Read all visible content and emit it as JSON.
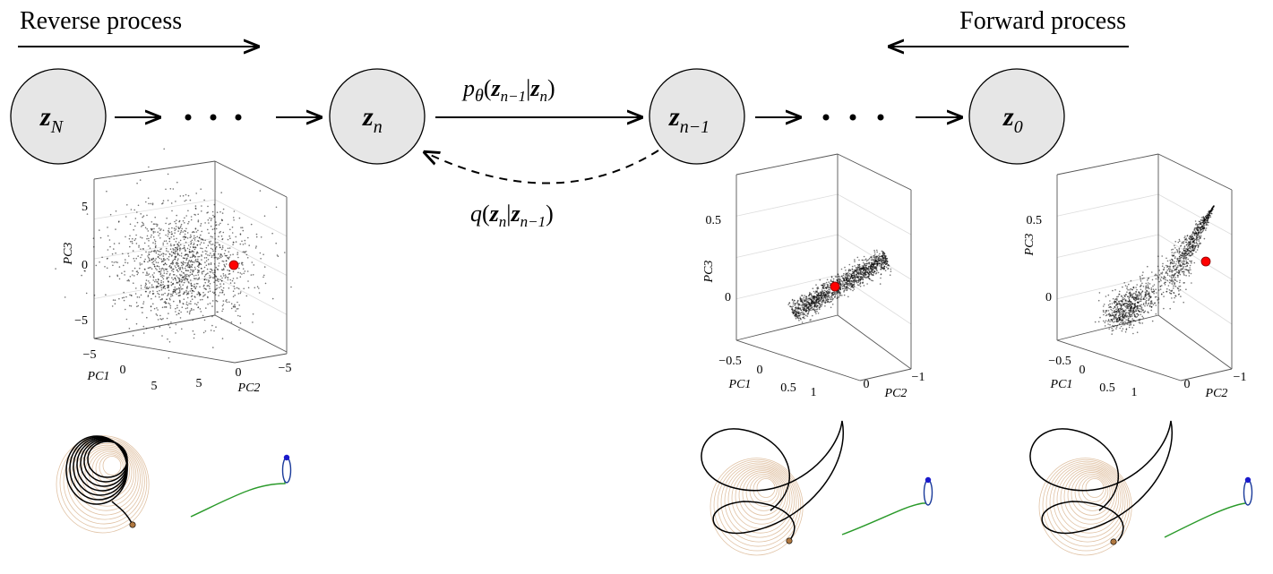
{
  "header": {
    "reverse": "Reverse process",
    "forward": "Forward process"
  },
  "nodes": [
    {
      "symbol": "z",
      "sub": "N"
    },
    {
      "symbol": "z",
      "sub": "n"
    },
    {
      "symbol": "z",
      "sub": "n−1"
    },
    {
      "symbol": "z",
      "sub": "0"
    }
  ],
  "edges": {
    "p_label": [
      "p",
      "θ",
      "(",
      "z",
      "n−1",
      "|",
      "z",
      "n",
      ")"
    ],
    "q_label": [
      "q",
      "(",
      "z",
      "n",
      "|",
      "z",
      "n−1",
      ")"
    ]
  },
  "plots": [
    {
      "pc3_ticks": [
        "5",
        "0",
        "−5"
      ],
      "pc1_ticks": [
        "−5",
        "0",
        "5"
      ],
      "pc2_ticks": [
        "5",
        "0",
        "−5"
      ],
      "pc1": "PC1",
      "pc2": "PC2",
      "pc3": "PC3"
    },
    {
      "pc3_ticks": [
        "0.5",
        "0"
      ],
      "pc1_ticks": [
        "−0.5",
        "0",
        "0.5"
      ],
      "pc2_ticks": [
        "1",
        "0",
        "−1"
      ],
      "pc1": "PC1",
      "pc2": "PC2",
      "pc3": "PC3"
    },
    {
      "pc3_ticks": [
        "0.5",
        "0"
      ],
      "pc1_ticks": [
        "−0.5",
        "0",
        "0.5"
      ],
      "pc2_ticks": [
        "1",
        "0",
        "−1"
      ],
      "pc1": "PC1",
      "pc2": "PC2",
      "pc3": "PC3"
    }
  ]
}
